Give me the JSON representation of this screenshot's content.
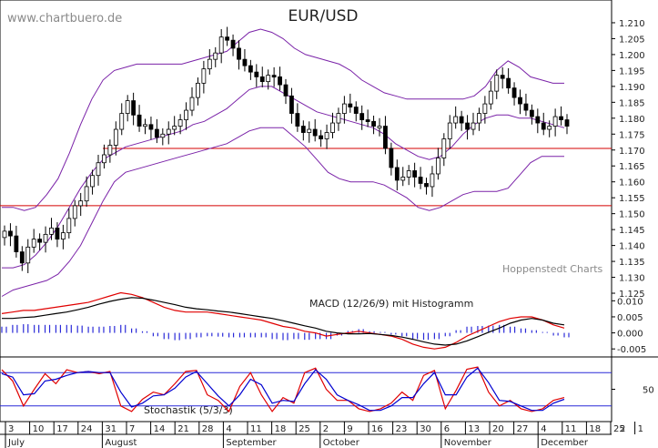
{
  "header": {
    "watermark": "www.chartbuero.de",
    "credit": "Hoppenstedt Charts"
  },
  "chart_data": [
    {
      "type": "candlestick",
      "title": "EUR/USD",
      "ylim": [
        1.121,
        1.216
      ],
      "y_ticks": [
        "1.210",
        "1.205",
        "1.200",
        "1.195",
        "1.190",
        "1.185",
        "1.180",
        "1.175",
        "1.170",
        "1.165",
        "1.160",
        "1.155",
        "1.150",
        "1.145",
        "1.140",
        "1.135",
        "1.130",
        "1.125"
      ],
      "horizontal_lines": [
        1.1705,
        1.1525
      ],
      "closes": [
        1.1445,
        1.143,
        1.138,
        1.1345,
        1.1395,
        1.142,
        1.141,
        1.1435,
        1.1455,
        1.142,
        1.144,
        1.1485,
        1.1525,
        1.154,
        1.1585,
        1.162,
        1.166,
        1.1685,
        1.1715,
        1.1765,
        1.1815,
        1.1855,
        1.181,
        1.1775,
        1.178,
        1.1765,
        1.174,
        1.175,
        1.1765,
        1.1775,
        1.1795,
        1.1825,
        1.1865,
        1.191,
        1.1955,
        1.1985,
        1.2005,
        1.2055,
        1.2045,
        1.202,
        1.1985,
        1.1965,
        1.1945,
        1.193,
        1.1915,
        1.1935,
        1.193,
        1.1905,
        1.187,
        1.1815,
        1.1775,
        1.1755,
        1.1765,
        1.1745,
        1.1735,
        1.1755,
        1.1785,
        1.1815,
        1.1845,
        1.1835,
        1.1815,
        1.1795,
        1.179,
        1.1775,
        1.1775,
        1.1705,
        1.1645,
        1.1605,
        1.1615,
        1.1635,
        1.1615,
        1.1595,
        1.1585,
        1.1625,
        1.1675,
        1.1735,
        1.1785,
        1.1805,
        1.1785,
        1.1765,
        1.1785,
        1.1815,
        1.1845,
        1.1885,
        1.1935,
        1.1925,
        1.1895,
        1.1865,
        1.1845,
        1.1825,
        1.1805,
        1.1785,
        1.1765,
        1.1775,
        1.1805,
        1.1795,
        1.1775
      ],
      "bollinger": {
        "upper": [
          1.152,
          1.152,
          1.151,
          1.152,
          1.156,
          1.161,
          1.169,
          1.178,
          1.186,
          1.192,
          1.195,
          1.196,
          1.197,
          1.197,
          1.197,
          1.197,
          1.197,
          1.198,
          1.199,
          1.2,
          1.201,
          1.204,
          1.207,
          1.208,
          1.207,
          1.205,
          1.202,
          1.2,
          1.199,
          1.198,
          1.197,
          1.195,
          1.192,
          1.19,
          1.188,
          1.187,
          1.186,
          1.186,
          1.186,
          1.186,
          1.186,
          1.186,
          1.187,
          1.19,
          1.195,
          1.198,
          1.196,
          1.193,
          1.192,
          1.191,
          1.191
        ],
        "middle": [
          1.133,
          1.133,
          1.134,
          1.137,
          1.141,
          1.146,
          1.152,
          1.158,
          1.163,
          1.167,
          1.169,
          1.171,
          1.172,
          1.173,
          1.174,
          1.175,
          1.176,
          1.178,
          1.179,
          1.181,
          1.183,
          1.186,
          1.189,
          1.19,
          1.19,
          1.188,
          1.186,
          1.184,
          1.182,
          1.181,
          1.18,
          1.179,
          1.178,
          1.177,
          1.175,
          1.172,
          1.17,
          1.168,
          1.167,
          1.168,
          1.171,
          1.175,
          1.178,
          1.18,
          1.181,
          1.181,
          1.18,
          1.18,
          1.179,
          1.178,
          1.177
        ],
        "lower": [
          1.124,
          1.126,
          1.127,
          1.128,
          1.129,
          1.131,
          1.135,
          1.14,
          1.147,
          1.154,
          1.16,
          1.163,
          1.164,
          1.165,
          1.166,
          1.167,
          1.168,
          1.169,
          1.17,
          1.171,
          1.172,
          1.174,
          1.176,
          1.177,
          1.177,
          1.177,
          1.174,
          1.171,
          1.167,
          1.163,
          1.161,
          1.16,
          1.16,
          1.16,
          1.159,
          1.157,
          1.155,
          1.152,
          1.151,
          1.152,
          1.154,
          1.156,
          1.157,
          1.157,
          1.157,
          1.158,
          1.162,
          1.166,
          1.168,
          1.168,
          1.168
        ]
      }
    },
    {
      "type": "line",
      "label": "MACD (12/26/9) mit Histogramm",
      "ylim": [
        -0.0075,
        0.0135
      ],
      "y_ticks": [
        "0.010",
        "0.005",
        "0.000",
        "-0.005"
      ],
      "series": [
        {
          "name": "MACD",
          "color": "#e00000",
          "values": [
            0.006,
            0.0065,
            0.007,
            0.007,
            0.0075,
            0.008,
            0.0085,
            0.009,
            0.0095,
            0.0105,
            0.0115,
            0.0125,
            0.012,
            0.011,
            0.0095,
            0.008,
            0.007,
            0.0065,
            0.0065,
            0.0065,
            0.006,
            0.0055,
            0.005,
            0.0045,
            0.004,
            0.003,
            0.002,
            0.0015,
            0.0005,
            0.0,
            -0.001,
            -0.0005,
            0.0,
            0.0005,
            0.0,
            -0.0005,
            -0.001,
            -0.002,
            -0.0035,
            -0.0045,
            -0.005,
            -0.0045,
            -0.003,
            -0.001,
            0.0005,
            0.002,
            0.0035,
            0.0045,
            0.005,
            0.005,
            0.004,
            0.0025,
            0.0015
          ]
        },
        {
          "name": "Signal",
          "color": "#000000",
          "values": [
            0.0045,
            0.0045,
            0.0048,
            0.005,
            0.0055,
            0.006,
            0.0065,
            0.0072,
            0.008,
            0.009,
            0.0098,
            0.0105,
            0.011,
            0.0108,
            0.0102,
            0.0095,
            0.0088,
            0.008,
            0.0075,
            0.0072,
            0.0068,
            0.0065,
            0.006,
            0.0055,
            0.005,
            0.0045,
            0.0038,
            0.003,
            0.0022,
            0.0015,
            0.0005,
            0.0,
            -0.0003,
            -0.0003,
            -0.0002,
            -0.0005,
            -0.0008,
            -0.0013,
            -0.002,
            -0.0028,
            -0.0035,
            -0.0038,
            -0.0035,
            -0.0025,
            -0.0012,
            0.0002,
            0.0015,
            0.003,
            0.004,
            0.0045,
            0.004,
            0.003,
            0.0025
          ]
        }
      ],
      "histogram": [
        0.0015,
        0.002,
        0.0022,
        0.002,
        0.002,
        0.002,
        0.002,
        0.0018,
        0.0015,
        0.0015,
        0.0017,
        0.002,
        0.001,
        0.0002,
        -0.0007,
        -0.0015,
        -0.0018,
        -0.0015,
        -0.001,
        -0.0007,
        -0.0008,
        -0.001,
        -0.001,
        -0.001,
        -0.001,
        -0.0015,
        -0.0018,
        -0.0015,
        -0.0017,
        -0.0015,
        -0.0015,
        -0.0005,
        0.0003,
        0.0008,
        0.0002,
        0.0,
        -0.0002,
        -0.0007,
        -0.0015,
        -0.0017,
        -0.0015,
        -0.0007,
        0.0005,
        0.0015,
        0.0017,
        0.0018,
        0.002,
        0.0015,
        0.001,
        0.0005,
        0.0,
        -0.0005,
        -0.001
      ]
    },
    {
      "type": "line",
      "label": "Stochastik (5/3/3)",
      "ylim": [
        0,
        100
      ],
      "y_ticks": [
        "50"
      ],
      "bands": [
        80,
        20
      ],
      "series": [
        {
          "name": "%K",
          "color": "#e00000",
          "values": [
            85,
            65,
            20,
            50,
            78,
            60,
            85,
            80,
            82,
            78,
            82,
            20,
            10,
            32,
            45,
            40,
            60,
            82,
            84,
            40,
            30,
            10,
            55,
            80,
            40,
            10,
            35,
            25,
            80,
            88,
            50,
            30,
            30,
            15,
            10,
            15,
            25,
            45,
            30,
            75,
            84,
            15,
            48,
            86,
            90,
            45,
            20,
            30,
            15,
            10,
            15,
            30,
            35
          ]
        },
        {
          "name": "%D",
          "color": "#0000d0",
          "values": [
            78,
            72,
            40,
            42,
            65,
            68,
            75,
            80,
            82,
            80,
            80,
            45,
            18,
            25,
            38,
            40,
            52,
            72,
            82,
            60,
            38,
            20,
            40,
            68,
            58,
            25,
            30,
            28,
            60,
            85,
            68,
            40,
            30,
            22,
            12,
            12,
            20,
            35,
            35,
            60,
            80,
            40,
            40,
            72,
            88,
            62,
            30,
            28,
            20,
            12,
            12,
            25,
            32
          ]
        }
      ]
    }
  ],
  "time_axis": {
    "day_ticks": [
      "3",
      "10",
      "17",
      "24",
      "31",
      "7",
      "14",
      "21",
      "28",
      "4",
      "11",
      "18",
      "25",
      "2",
      "9",
      "16",
      "23",
      "30",
      "6",
      "13",
      "20",
      "27",
      "4",
      "11",
      "18",
      "25",
      "1"
    ],
    "extra_label": "2",
    "months": [
      "July",
      "August",
      "September",
      "October",
      "November",
      "December"
    ]
  }
}
